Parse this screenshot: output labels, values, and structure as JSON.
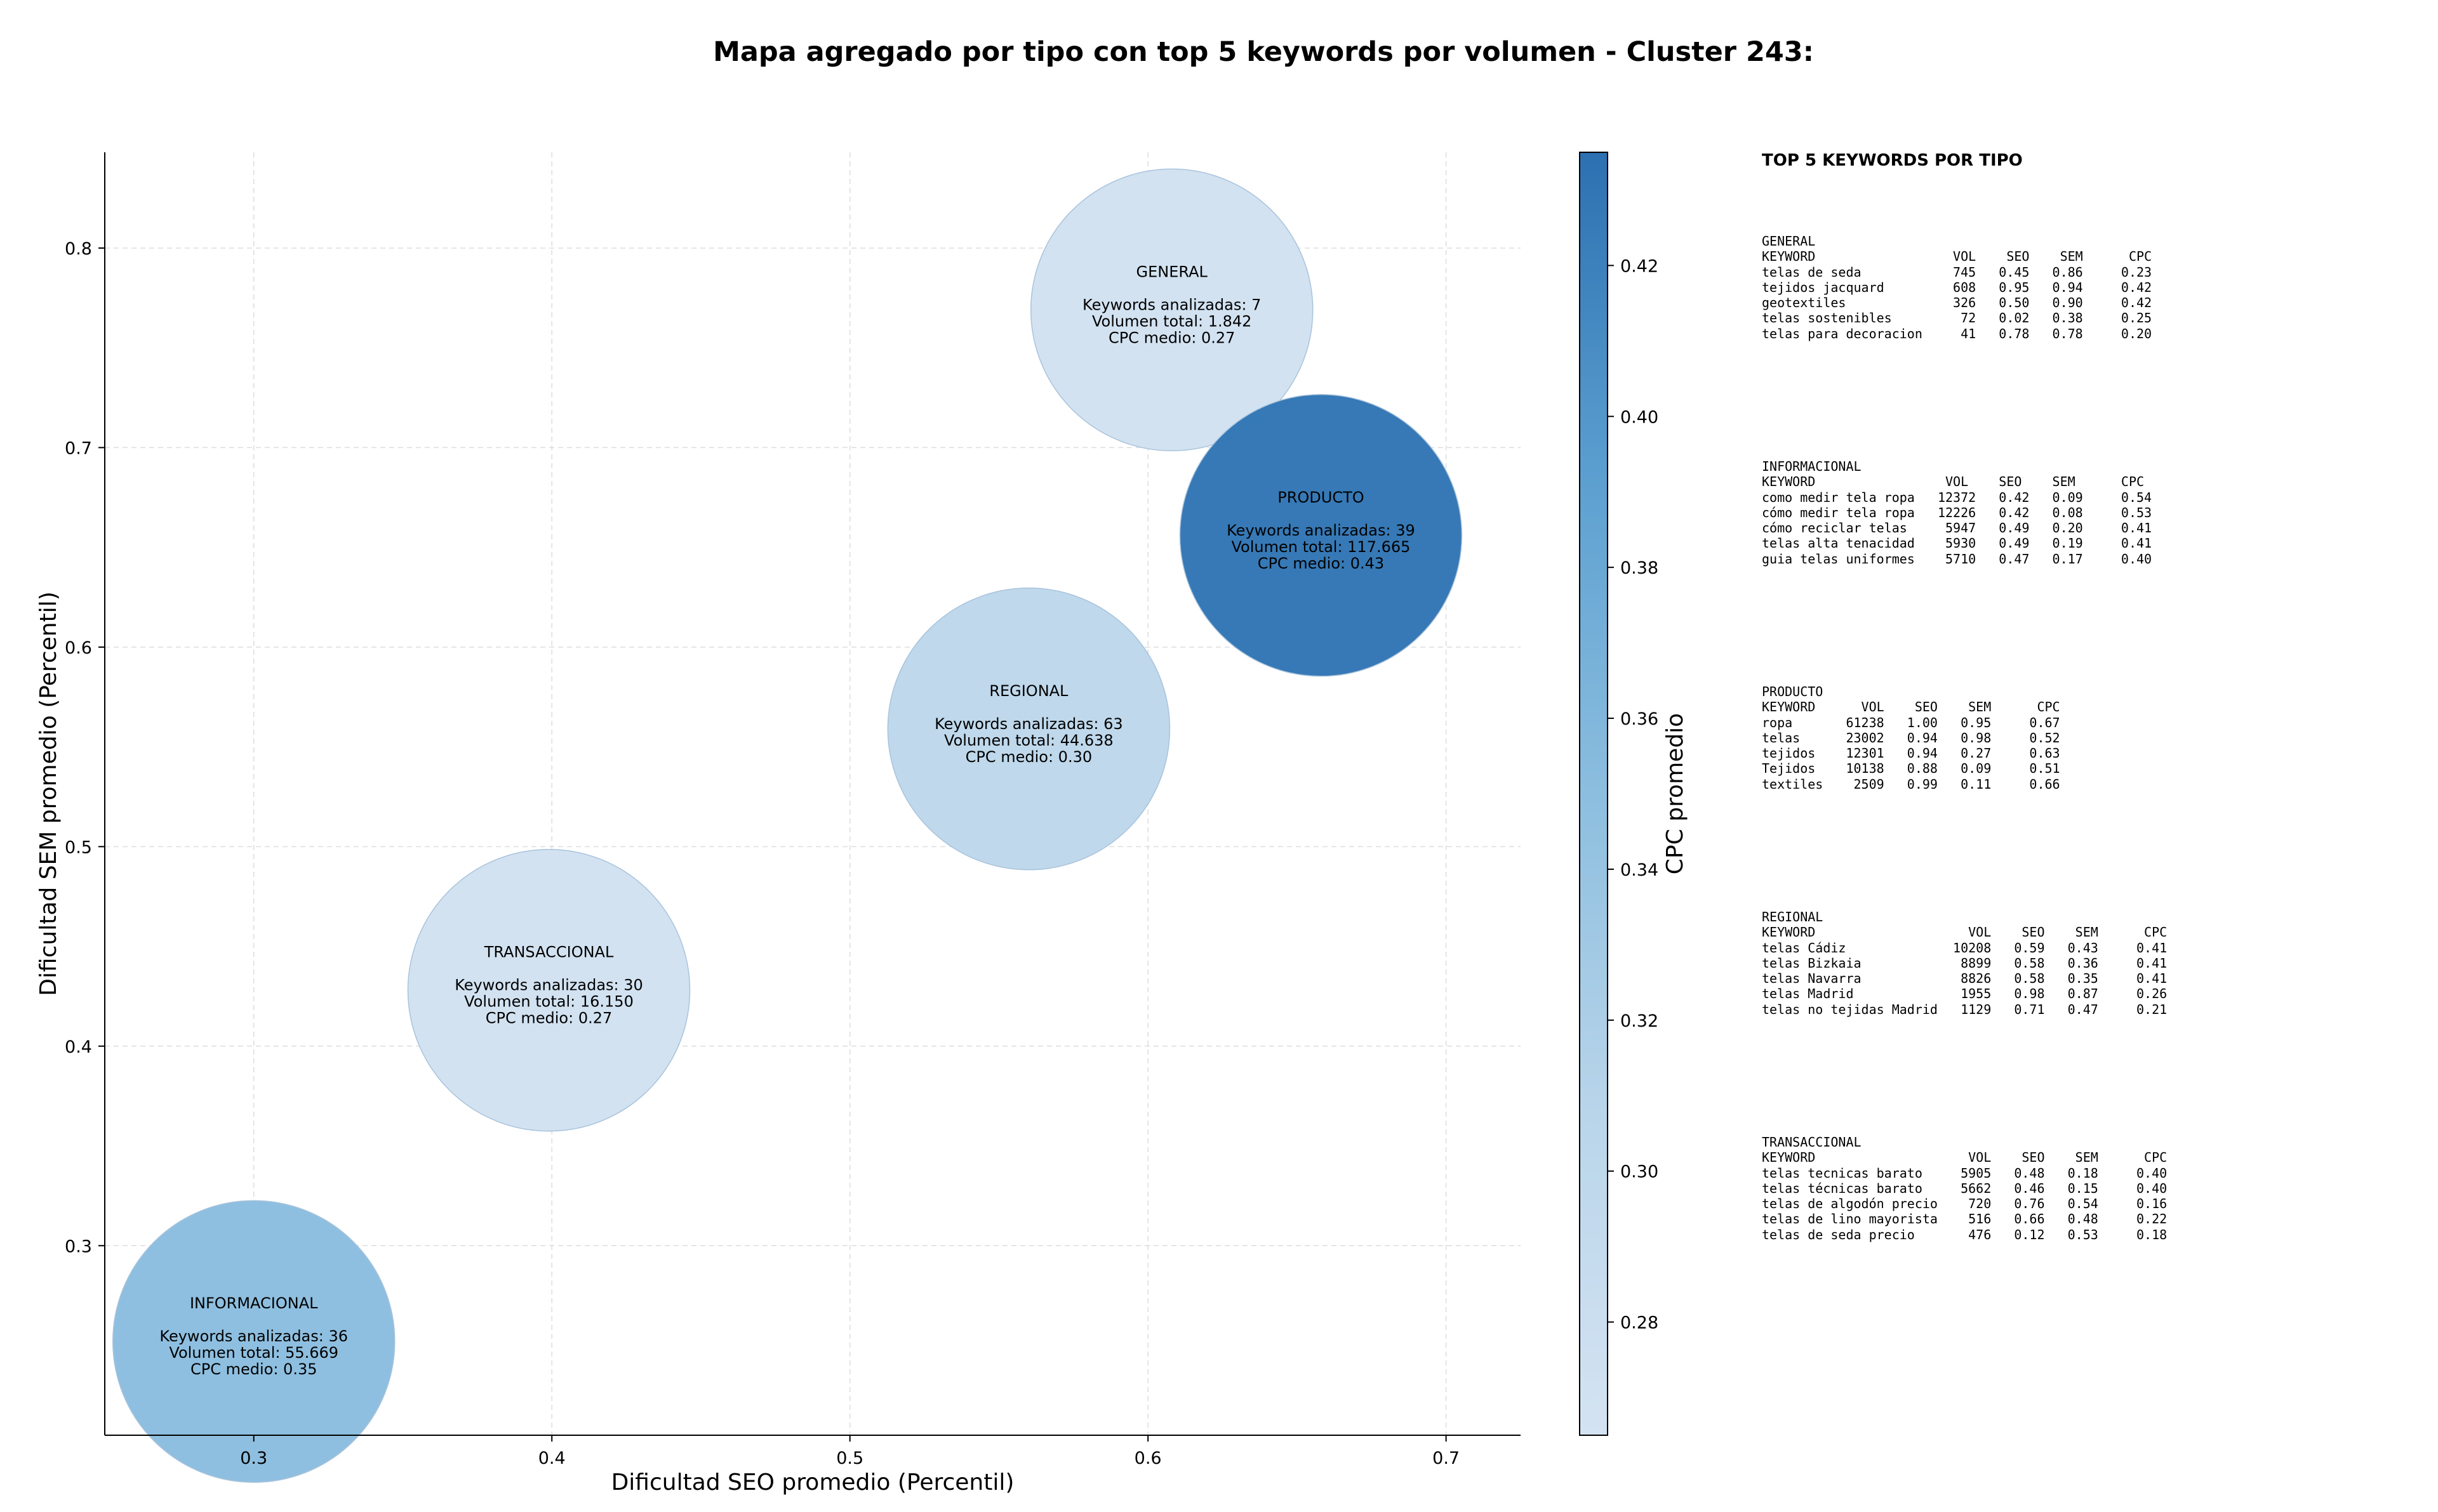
{
  "colors": {
    "scale_low": "#d4e3f2",
    "scale_high": "#2c70b1"
  },
  "chart_data": {
    "type": "scatter",
    "title": "Mapa agregado por tipo con top 5 keywords por volumen - Cluster 243:",
    "xlabel": "Dificultad SEO promedio (Percentil)",
    "ylabel": "Dificultad SEM promedio (Percentil)",
    "xlim": [
      0.25,
      0.725
    ],
    "ylim": [
      0.205,
      0.848
    ],
    "xticks": [
      0.3,
      0.4,
      0.5,
      0.6,
      0.7
    ],
    "yticks": [
      0.3,
      0.4,
      0.5,
      0.6,
      0.7,
      0.8
    ],
    "grid": true,
    "colorbar": {
      "label": "CPC promedio",
      "range": [
        0.265,
        0.435
      ],
      "ticks": [
        0.28,
        0.3,
        0.32,
        0.34,
        0.36,
        0.38,
        0.4,
        0.42
      ]
    },
    "points": [
      {
        "name": "GENERAL",
        "x": 0.608,
        "y": 0.769,
        "cpc": 0.27,
        "lines": [
          "Keywords analizadas: 7",
          "Volumen total: 1.842",
          "CPC medio: 0.27"
        ]
      },
      {
        "name": "PRODUCTO",
        "x": 0.658,
        "y": 0.656,
        "cpc": 0.43,
        "lines": [
          "Keywords analizadas: 39",
          "Volumen total: 117.665",
          "CPC medio: 0.43"
        ]
      },
      {
        "name": "REGIONAL",
        "x": 0.56,
        "y": 0.559,
        "cpc": 0.3,
        "lines": [
          "Keywords analizadas: 63",
          "Volumen total: 44.638",
          "CPC medio: 0.30"
        ]
      },
      {
        "name": "TRANSACCIONAL",
        "x": 0.399,
        "y": 0.428,
        "cpc": 0.27,
        "lines": [
          "Keywords analizadas: 30",
          "Volumen total: 16.150",
          "CPC medio: 0.27"
        ]
      },
      {
        "name": "INFORMACIONAL",
        "x": 0.3,
        "y": 0.252,
        "cpc": 0.35,
        "lines": [
          "Keywords analizadas: 36",
          "Volumen total: 55.669",
          "CPC medio: 0.35"
        ]
      }
    ]
  },
  "side_panel": {
    "title": "TOP 5 KEYWORDS POR TIPO",
    "blocks": [
      {
        "text": "GENERAL\nKEYWORD                  VOL    SEO    SEM      CPC\ntelas de seda            745   0.45   0.86     0.23\ntejidos jacquard         608   0.95   0.94     0.42\ngeotextiles              326   0.50   0.90     0.42\ntelas sostenibles         72   0.02   0.38     0.25\ntelas para decoracion     41   0.78   0.78     0.20"
      },
      {
        "text": "INFORMACIONAL\nKEYWORD                 VOL    SEO    SEM      CPC\ncomo medir tela ropa   12372   0.42   0.09     0.54\ncómo medir tela ropa   12226   0.42   0.08     0.53\ncómo reciclar telas     5947   0.49   0.20     0.41\ntelas alta tenacidad    5930   0.49   0.19     0.41\nguia telas uniformes    5710   0.47   0.17     0.40"
      },
      {
        "text": "PRODUCTO\nKEYWORD      VOL    SEO    SEM      CPC\nropa       61238   1.00   0.95     0.67\ntelas      23002   0.94   0.98     0.52\ntejidos    12301   0.94   0.27     0.63\nTejidos    10138   0.88   0.09     0.51\ntextiles    2509   0.99   0.11     0.66"
      },
      {
        "text": "REGIONAL\nKEYWORD                    VOL    SEO    SEM      CPC\ntelas Cádiz              10208   0.59   0.43     0.41\ntelas Bizkaia             8899   0.58   0.36     0.41\ntelas Navarra             8826   0.58   0.35     0.41\ntelas Madrid              1955   0.98   0.87     0.26\ntelas no tejidas Madrid   1129   0.71   0.47     0.21"
      },
      {
        "text": "TRANSACCIONAL\nKEYWORD                    VOL    SEO    SEM      CPC\ntelas tecnicas barato     5905   0.48   0.18     0.40\ntelas técnicas barato     5662   0.46   0.15     0.40\ntelas de algodón precio    720   0.76   0.54     0.16\ntelas de lino mayorista    516   0.66   0.48     0.22\ntelas de seda precio       476   0.12   0.53     0.18"
      }
    ]
  }
}
